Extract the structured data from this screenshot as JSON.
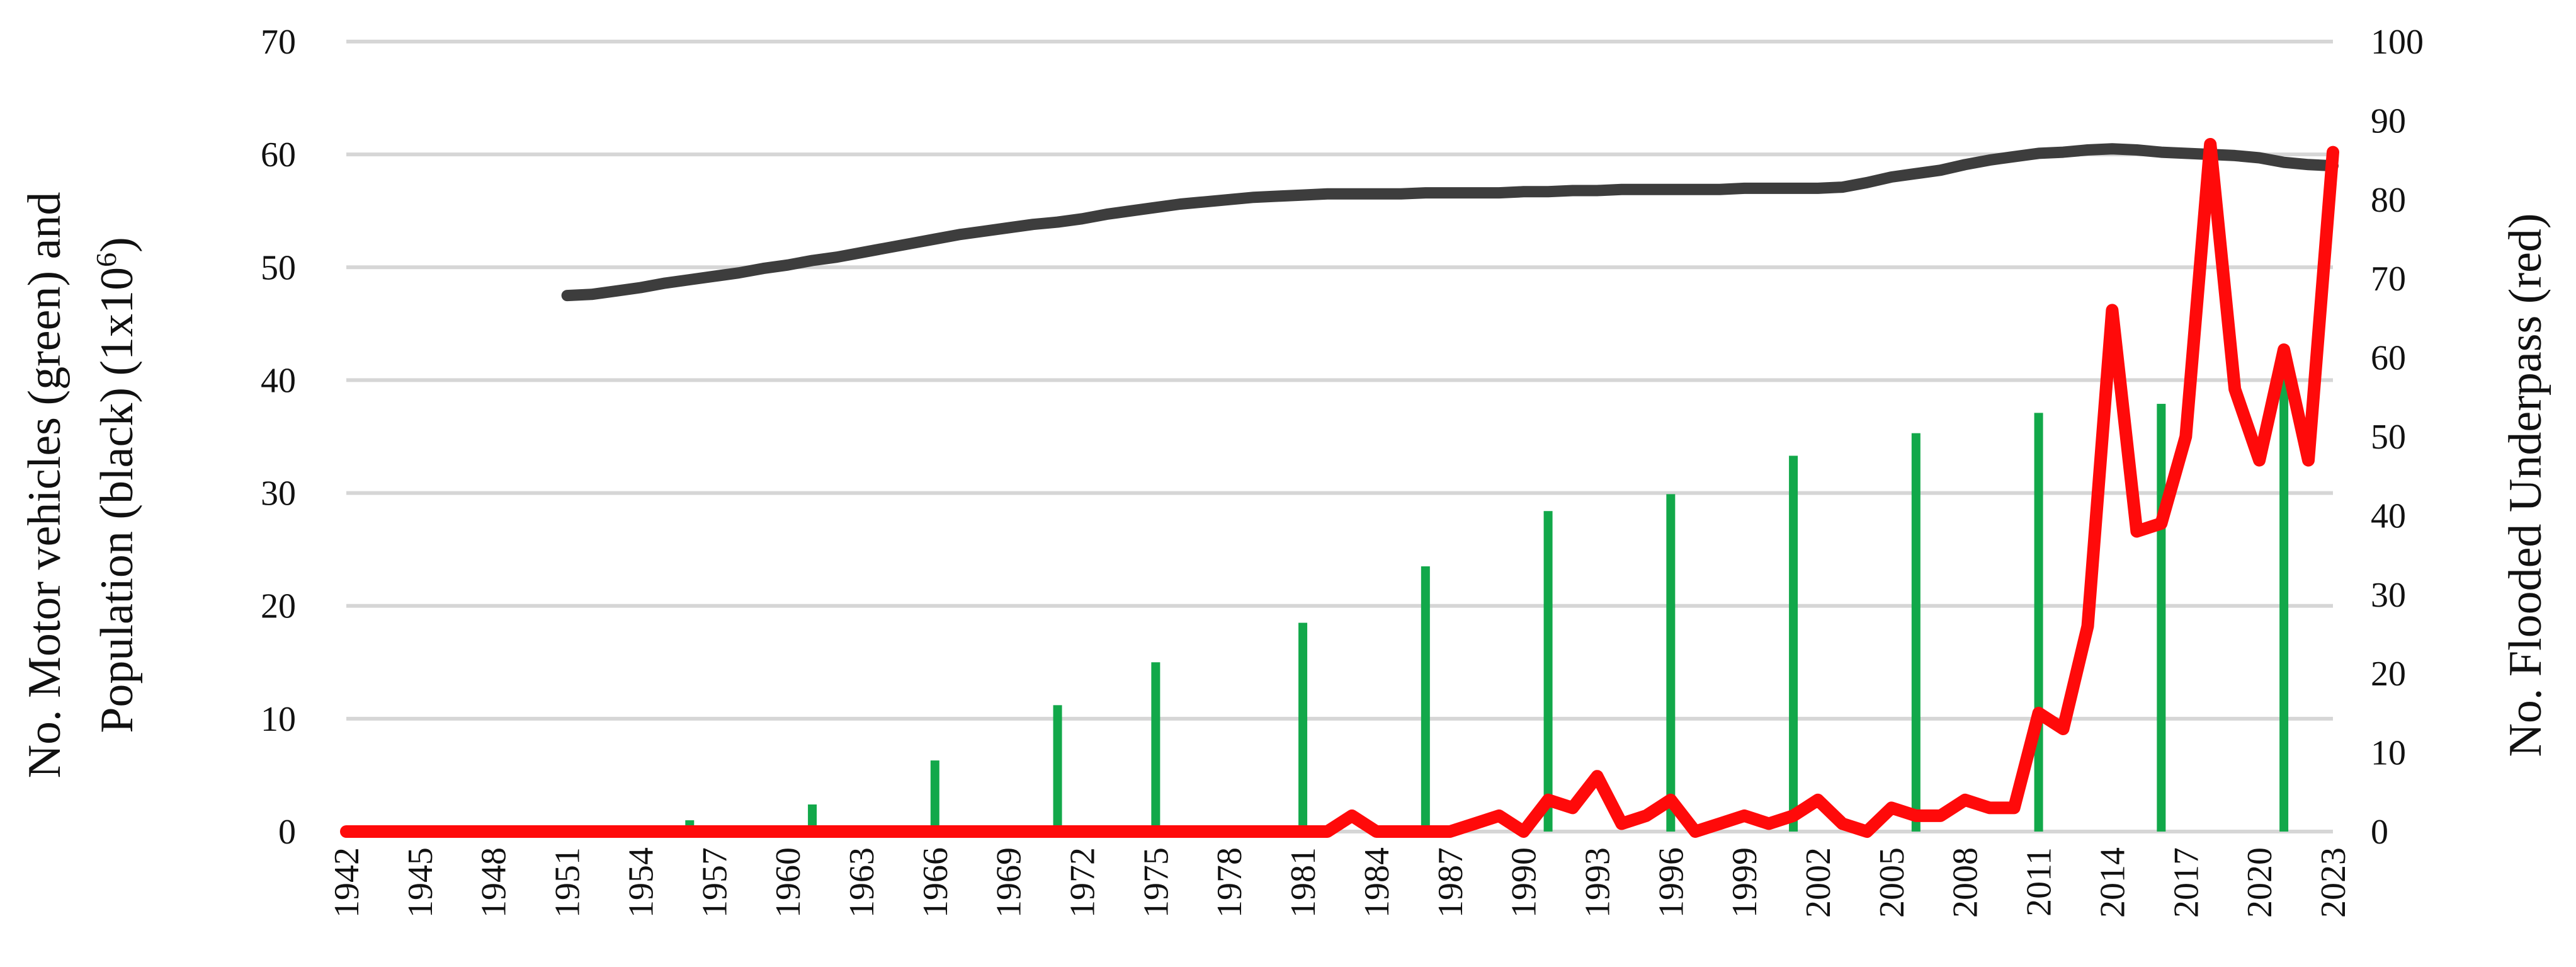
{
  "chart_data": {
    "type": "line",
    "x_ticks": [
      "1942",
      "1945",
      "1948",
      "1951",
      "1954",
      "1957",
      "1960",
      "1963",
      "1966",
      "1969",
      "1972",
      "1975",
      "1978",
      "1981",
      "1984",
      "1987",
      "1990",
      "1993",
      "1996",
      "1999",
      "2002",
      "2005",
      "2008",
      "2011",
      "2014",
      "2017",
      "2020",
      "2023"
    ],
    "xlim": [
      1942,
      2023
    ],
    "left_axis": {
      "label_line1": "No. Motor vehicles (green) and",
      "label_line2_prefix": "Population (black) (1x10",
      "label_line2_sup": "6",
      "label_line2_suffix": ")",
      "ylim": [
        0,
        70
      ],
      "ticks": [
        0,
        10,
        20,
        30,
        40,
        50,
        60,
        70
      ]
    },
    "right_axis": {
      "label": "No. Flooded Underpass (red)",
      "ylim": [
        0,
        100
      ],
      "ticks": [
        0,
        10,
        20,
        30,
        40,
        50,
        60,
        70,
        80,
        90,
        100
      ]
    },
    "grid": true,
    "colors": {
      "motor_vehicles": "#12a84a",
      "population": "#3d3d3d",
      "flooded_underpass": "#ff0a0a",
      "grid": "#d6d6d6",
      "text": "#111111"
    },
    "series": [
      {
        "key": "motor_vehicles",
        "kind": "bar",
        "axis": "left",
        "x": [
          1956,
          1961,
          1966,
          1971,
          1975,
          1981,
          1986,
          1991,
          1996,
          2001,
          2006,
          2011,
          2016,
          2021
        ],
        "values": [
          1.0,
          2.4,
          6.3,
          11.2,
          15.0,
          18.5,
          23.5,
          28.4,
          29.9,
          33.3,
          35.3,
          37.1,
          37.9,
          40.6
        ]
      },
      {
        "key": "population",
        "kind": "line",
        "axis": "left",
        "x": [
          1951,
          1952,
          1953,
          1954,
          1955,
          1956,
          1957,
          1958,
          1959,
          1960,
          1961,
          1962,
          1963,
          1964,
          1965,
          1966,
          1967,
          1968,
          1969,
          1970,
          1971,
          1972,
          1973,
          1974,
          1975,
          1976,
          1977,
          1978,
          1979,
          1980,
          1981,
          1982,
          1983,
          1984,
          1985,
          1986,
          1987,
          1988,
          1989,
          1990,
          1991,
          1992,
          1993,
          1994,
          1995,
          1996,
          1997,
          1998,
          1999,
          2000,
          2001,
          2002,
          2003,
          2004,
          2005,
          2006,
          2007,
          2008,
          2009,
          2010,
          2011,
          2012,
          2013,
          2014,
          2015,
          2016,
          2017,
          2018,
          2019,
          2020,
          2021,
          2022,
          2023
        ],
        "values": [
          47.5,
          47.6,
          47.9,
          48.2,
          48.6,
          48.9,
          49.2,
          49.5,
          49.9,
          50.2,
          50.6,
          50.9,
          51.3,
          51.7,
          52.1,
          52.5,
          52.9,
          53.2,
          53.5,
          53.8,
          54.0,
          54.3,
          54.7,
          55.0,
          55.3,
          55.6,
          55.8,
          56.0,
          56.2,
          56.3,
          56.4,
          56.5,
          56.5,
          56.5,
          56.5,
          56.6,
          56.6,
          56.6,
          56.6,
          56.7,
          56.7,
          56.8,
          56.8,
          56.9,
          56.9,
          56.9,
          56.9,
          56.9,
          57.0,
          57.0,
          57.0,
          57.0,
          57.1,
          57.5,
          58.0,
          58.3,
          58.6,
          59.1,
          59.5,
          59.8,
          60.1,
          60.2,
          60.4,
          60.5,
          60.4,
          60.2,
          60.1,
          60.0,
          59.9,
          59.7,
          59.3,
          59.1,
          59.0
        ]
      },
      {
        "key": "flooded_underpass",
        "kind": "line",
        "axis": "right",
        "x": [
          1942,
          1981,
          1982,
          1983,
          1984,
          1985,
          1986,
          1987,
          1988,
          1989,
          1990,
          1991,
          1992,
          1993,
          1994,
          1995,
          1996,
          1997,
          1998,
          1999,
          2000,
          2001,
          2002,
          2003,
          2004,
          2005,
          2006,
          2007,
          2008,
          2009,
          2010,
          2011,
          2012,
          2013,
          2014,
          2015,
          2016,
          2017,
          2018,
          2019,
          2020,
          2021,
          2022,
          2023
        ],
        "values": [
          0,
          0,
          0,
          2,
          0,
          0,
          0,
          0,
          1,
          2,
          0,
          4,
          3,
          7,
          1,
          2,
          4,
          0,
          1,
          2,
          1,
          2,
          4,
          1,
          0,
          3,
          2,
          2,
          4,
          3,
          3,
          15,
          13,
          26,
          66,
          38,
          39,
          50,
          87,
          56,
          47,
          61,
          47,
          86
        ]
      }
    ]
  }
}
